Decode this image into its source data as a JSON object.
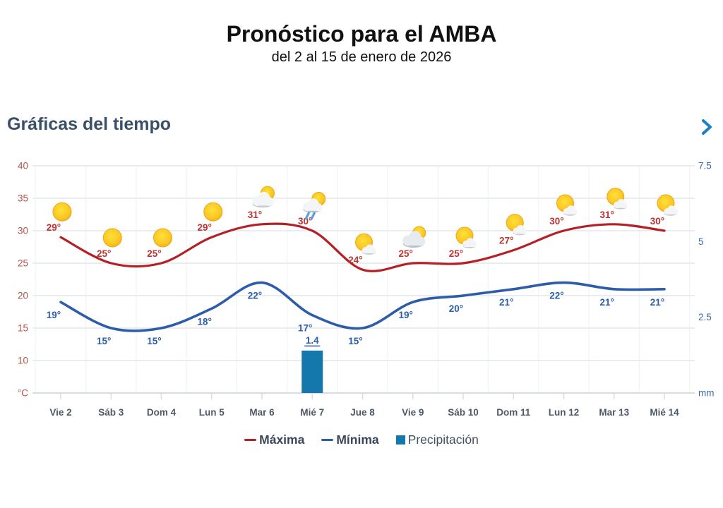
{
  "header": {
    "title": "Pronóstico para el AMBA",
    "subtitle": "del 2 al 15 de enero de 2026"
  },
  "section": {
    "title": "Gráficas del tiempo"
  },
  "legend": {
    "maxima": "Máxima",
    "minima": "Mínima",
    "precipitacion": "Precipitación"
  },
  "colors": {
    "max_line": "#b42025",
    "max_label": "#bb3431",
    "min_line": "#2d5da9",
    "min_label": "#2d5da9",
    "precip_bar": "#1478ad",
    "precip_label": "#2d5da9",
    "left_axis_text": "#b5504f",
    "right_axis_text": "#3a68ae",
    "day_label": "#4d5966",
    "grid": "#e9edf0",
    "grid_baseline": "#d8dde2",
    "grid_vertical": "#f2f5f7",
    "section_title": "#3a5068",
    "chevron": "#1b80c4",
    "rain_stroke": "#5aa0d8"
  },
  "chart_data": {
    "type": "line+bar",
    "categories": [
      "Vie 2",
      "Sáb 3",
      "Dom 4",
      "Lun 5",
      "Mar 6",
      "Mié 7",
      "Jue 8",
      "Vie 9",
      "Sáb 10",
      "Dom 11",
      "Lun 12",
      "Mar 13",
      "Mié 14"
    ],
    "series": [
      {
        "name": "Máxima",
        "type": "line",
        "unit": "°C",
        "values": [
          29,
          25,
          25,
          29,
          31,
          30,
          24,
          25,
          25,
          27,
          30,
          31,
          30
        ]
      },
      {
        "name": "Mínima",
        "type": "line",
        "unit": "°C",
        "values": [
          19,
          15,
          15,
          18,
          22,
          17,
          15,
          19,
          20,
          21,
          22,
          21,
          21
        ]
      },
      {
        "name": "Precipitación",
        "type": "bar",
        "unit": "mm",
        "values": [
          0,
          0,
          0,
          0,
          0,
          1.4,
          0,
          0,
          0,
          0,
          0,
          0,
          0
        ]
      }
    ],
    "icons": [
      "sunny",
      "sunny",
      "sunny",
      "sunny",
      "partly-cloudy",
      "rain",
      "sun-cloud",
      "mostly-cloudy",
      "sun-cloud",
      "sun-cloud",
      "sun-cloud",
      "sun-cloud",
      "sun-cloud"
    ],
    "left_axis": {
      "ticks": [
        "40",
        "35",
        "30",
        "25",
        "20",
        "15",
        "10"
      ],
      "unit_label": "°C",
      "range": [
        5,
        40
      ]
    },
    "right_axis": {
      "ticks": [
        "7.5",
        "5",
        "2.5"
      ],
      "unit_label": "mm",
      "range": [
        0,
        7.5
      ]
    },
    "grid": true,
    "legend_position": "bottom"
  }
}
